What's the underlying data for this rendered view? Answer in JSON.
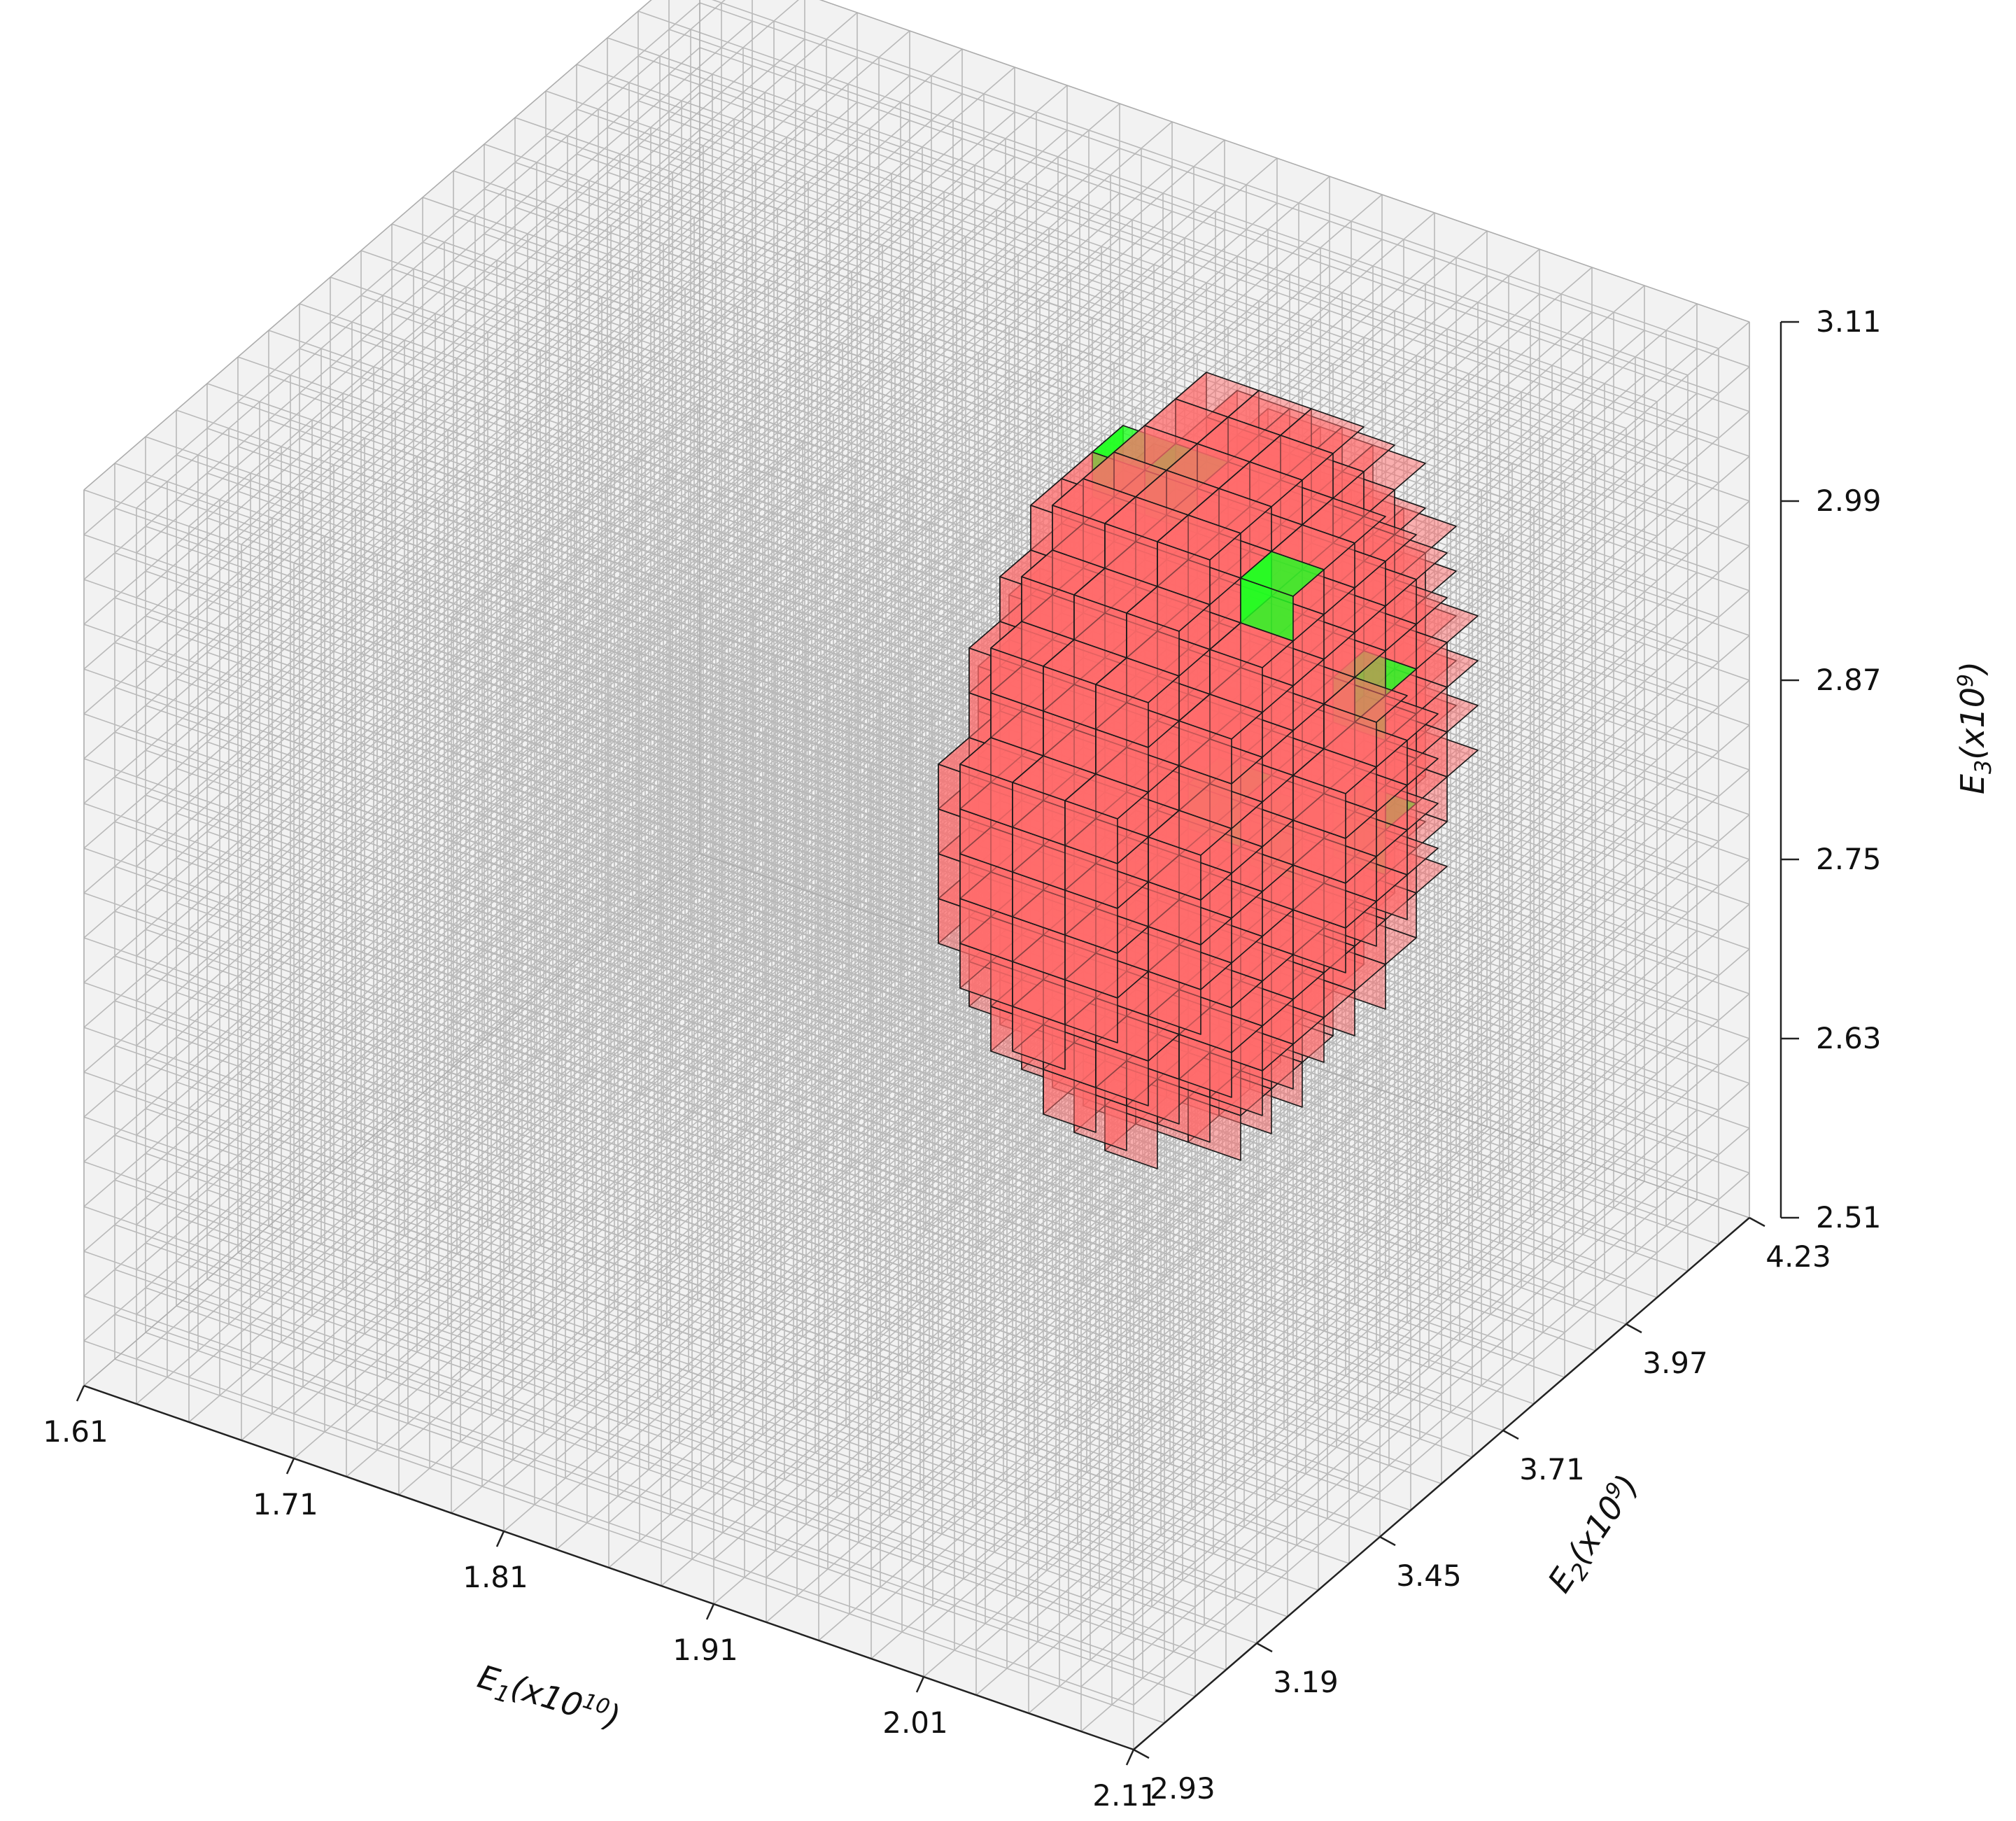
{
  "chart_data": {
    "type": "voxel-3d",
    "x_axis": {
      "label_base": "E",
      "label_sub": "1",
      "label_unit_pre": "(x10",
      "label_unit_exp": "10",
      "label_unit_post": ")",
      "ticks": [
        "1.61",
        "1.71",
        "1.81",
        "1.91",
        "2.01",
        "2.11"
      ],
      "range": [
        1.61,
        2.11
      ]
    },
    "y_axis": {
      "label_base": "E",
      "label_sub": "2",
      "label_unit_pre": "(x10",
      "label_unit_exp": "9",
      "label_unit_post": ")",
      "ticks": [
        "2.93",
        "3.19",
        "3.45",
        "3.71",
        "3.97",
        "4.23"
      ],
      "range": [
        2.93,
        4.23
      ]
    },
    "z_axis": {
      "label_base": "E",
      "label_sub": "3",
      "label_unit_pre": "(x10",
      "label_unit_exp": "9",
      "label_unit_post": ")",
      "ticks": [
        "2.51",
        "2.63",
        "2.75",
        "2.87",
        "2.99",
        "3.11"
      ],
      "range": [
        2.51,
        3.11
      ]
    },
    "grid": true,
    "grid_divisions": 20,
    "voxel_shape": "ellipsoid",
    "colors": {
      "ellipsoid_voxel": "#ff6b6b",
      "highlight_voxel": "#22ff22",
      "center_voxel": "#4a0000",
      "pane": "#f2f2f2"
    },
    "highlight_voxels_visible": 12,
    "center_voxels_visible": 1
  }
}
